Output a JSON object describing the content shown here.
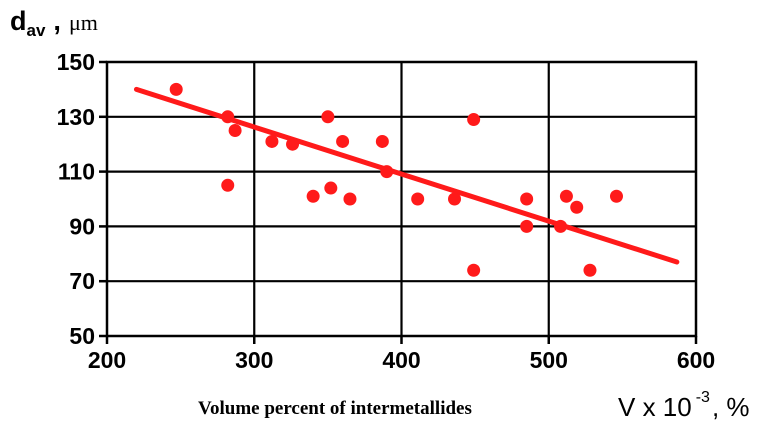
{
  "chart_data": {
    "type": "scatter",
    "y_label": {
      "symbol": "d",
      "subscript": "av",
      "separator": ",",
      "unit": "μm"
    },
    "x_label": {
      "text": "Volume percent of intermetallides",
      "symbol": "V x 10",
      "superscript": "-3",
      "unit": ", %"
    },
    "xlim": [
      200,
      600
    ],
    "ylim": [
      50,
      150
    ],
    "x_ticks": [
      200,
      300,
      400,
      500,
      600
    ],
    "x_tick_labels": [
      "200",
      "300",
      "400",
      "500",
      "600"
    ],
    "y_ticks": [
      50,
      70,
      90,
      110,
      130,
      150
    ],
    "y_tick_labels": [
      "50",
      "70",
      "90",
      "110",
      "130",
      "150"
    ],
    "grid": true,
    "legend": "none",
    "points": [
      {
        "x": 247,
        "y": 140
      },
      {
        "x": 282,
        "y": 130
      },
      {
        "x": 287,
        "y": 125
      },
      {
        "x": 282,
        "y": 105
      },
      {
        "x": 312,
        "y": 121
      },
      {
        "x": 326,
        "y": 120
      },
      {
        "x": 340,
        "y": 101
      },
      {
        "x": 350,
        "y": 130
      },
      {
        "x": 352,
        "y": 104
      },
      {
        "x": 360,
        "y": 121
      },
      {
        "x": 365,
        "y": 100
      },
      {
        "x": 387,
        "y": 121
      },
      {
        "x": 390,
        "y": 110
      },
      {
        "x": 411,
        "y": 100
      },
      {
        "x": 436,
        "y": 100
      },
      {
        "x": 449,
        "y": 129
      },
      {
        "x": 449,
        "y": 74
      },
      {
        "x": 485,
        "y": 100
      },
      {
        "x": 485,
        "y": 90
      },
      {
        "x": 508,
        "y": 90
      },
      {
        "x": 512,
        "y": 101
      },
      {
        "x": 519,
        "y": 97
      },
      {
        "x": 528,
        "y": 74
      },
      {
        "x": 546,
        "y": 101
      }
    ],
    "trendline": {
      "x": [
        220,
        587
      ],
      "y": [
        140,
        77
      ]
    },
    "colors": {
      "points": "#ff1a1a",
      "trendline": "#ff1a1a",
      "grid": "#000000",
      "axes": "#000000"
    }
  }
}
